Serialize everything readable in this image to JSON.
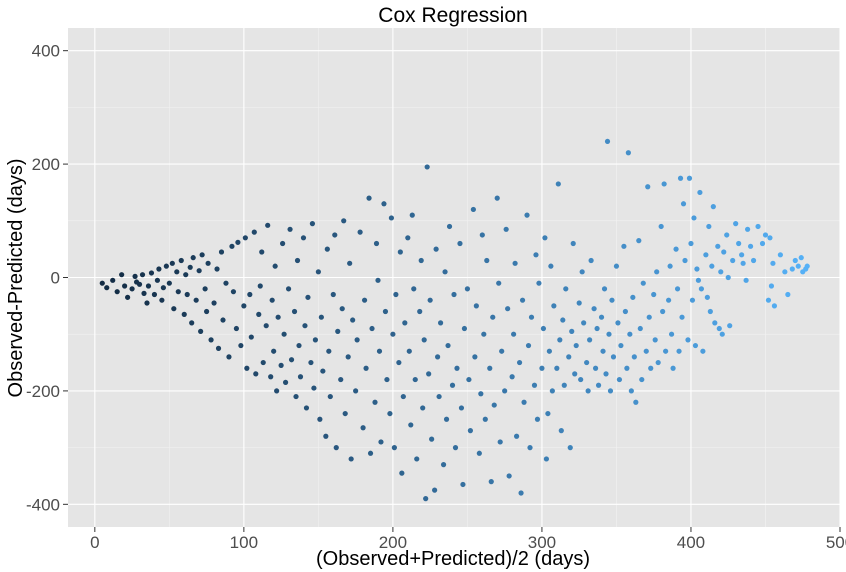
{
  "chart_data": {
    "type": "scatter",
    "title": "Cox Regression",
    "xlabel": "(Observed+Predicted)/2  (days)",
    "ylabel": "Observed-Predicted  (days)",
    "xlim": [
      -18,
      500
    ],
    "ylim": [
      -440,
      440
    ],
    "xticks": [
      0,
      100,
      200,
      300,
      400,
      500
    ],
    "xtick_labels": [
      "0",
      "100",
      "200",
      "300",
      "400",
      "500"
    ],
    "yticks": [
      -400,
      -200,
      0,
      200,
      400
    ],
    "ytick_labels": [
      "-400",
      "-200",
      "0",
      "200",
      "400"
    ],
    "grid": true,
    "panel_background": "#e5e5e5",
    "color_scale": {
      "low": "#132b43",
      "high": "#56b1f7",
      "mapped_to": "x"
    },
    "points": [
      [
        5,
        -10
      ],
      [
        8,
        -18
      ],
      [
        12,
        -5
      ],
      [
        15,
        -25
      ],
      [
        18,
        5
      ],
      [
        20,
        -15
      ],
      [
        22,
        -35
      ],
      [
        25,
        -20
      ],
      [
        27,
        2
      ],
      [
        28,
        -8
      ],
      [
        30,
        -12
      ],
      [
        32,
        5
      ],
      [
        33,
        -28
      ],
      [
        35,
        -45
      ],
      [
        36,
        -15
      ],
      [
        38,
        8
      ],
      [
        40,
        -30
      ],
      [
        42,
        -5
      ],
      [
        43,
        15
      ],
      [
        45,
        -40
      ],
      [
        46,
        -18
      ],
      [
        48,
        20
      ],
      [
        50,
        -10
      ],
      [
        52,
        25
      ],
      [
        53,
        -55
      ],
      [
        55,
        10
      ],
      [
        56,
        -25
      ],
      [
        58,
        30
      ],
      [
        60,
        -65
      ],
      [
        61,
        5
      ],
      [
        62,
        -30
      ],
      [
        64,
        18
      ],
      [
        65,
        -80
      ],
      [
        66,
        35
      ],
      [
        68,
        -40
      ],
      [
        70,
        12
      ],
      [
        71,
        -95
      ],
      [
        72,
        40
      ],
      [
        74,
        -20
      ],
      [
        75,
        -60
      ],
      [
        76,
        25
      ],
      [
        78,
        -110
      ],
      [
        80,
        -45
      ],
      [
        82,
        15
      ],
      [
        83,
        -125
      ],
      [
        85,
        45
      ],
      [
        86,
        -75
      ],
      [
        88,
        -10
      ],
      [
        90,
        -140
      ],
      [
        92,
        55
      ],
      [
        93,
        -25
      ],
      [
        95,
        -90
      ],
      [
        96,
        62
      ],
      [
        98,
        -120
      ],
      [
        100,
        -50
      ],
      [
        101,
        70
      ],
      [
        102,
        -160
      ],
      [
        104,
        -30
      ],
      [
        105,
        -105
      ],
      [
        107,
        80
      ],
      [
        108,
        -170
      ],
      [
        110,
        -65
      ],
      [
        111,
        -15
      ],
      [
        112,
        45
      ],
      [
        113,
        -150
      ],
      [
        115,
        -85
      ],
      [
        116,
        92
      ],
      [
        118,
        -175
      ],
      [
        119,
        -40
      ],
      [
        120,
        -130
      ],
      [
        121,
        20
      ],
      [
        122,
        -200
      ],
      [
        123,
        -70
      ],
      [
        125,
        -155
      ],
      [
        126,
        60
      ],
      [
        127,
        -100
      ],
      [
        128,
        -185
      ],
      [
        130,
        -20
      ],
      [
        131,
        85
      ],
      [
        132,
        -145
      ],
      [
        134,
        -60
      ],
      [
        135,
        -210
      ],
      [
        136,
        30
      ],
      [
        137,
        -120
      ],
      [
        138,
        -175
      ],
      [
        140,
        70
      ],
      [
        141,
        -85
      ],
      [
        142,
        -230
      ],
      [
        143,
        -35
      ],
      [
        145,
        -150
      ],
      [
        146,
        95
      ],
      [
        147,
        -195
      ],
      [
        148,
        -110
      ],
      [
        150,
        10
      ],
      [
        151,
        -250
      ],
      [
        152,
        -70
      ],
      [
        153,
        -165
      ],
      [
        155,
        -280
      ],
      [
        156,
        50
      ],
      [
        157,
        -130
      ],
      [
        158,
        -210
      ],
      [
        160,
        -30
      ],
      [
        161,
        75
      ],
      [
        162,
        -300
      ],
      [
        163,
        -95
      ],
      [
        165,
        -180
      ],
      [
        166,
        -55
      ],
      [
        167,
        100
      ],
      [
        168,
        -240
      ],
      [
        170,
        -140
      ],
      [
        171,
        25
      ],
      [
        172,
        -320
      ],
      [
        173,
        -75
      ],
      [
        175,
        -200
      ],
      [
        176,
        -110
      ],
      [
        178,
        80
      ],
      [
        180,
        -265
      ],
      [
        181,
        -40
      ],
      [
        182,
        -160
      ],
      [
        184,
        140
      ],
      [
        185,
        -310
      ],
      [
        186,
        -90
      ],
      [
        188,
        -220
      ],
      [
        189,
        60
      ],
      [
        190,
        -5
      ],
      [
        191,
        -130
      ],
      [
        192,
        -290
      ],
      [
        194,
        130
      ],
      [
        195,
        -60
      ],
      [
        196,
        -180
      ],
      [
        198,
        -240
      ],
      [
        199,
        105
      ],
      [
        200,
        -100
      ],
      [
        201,
        -300
      ],
      [
        202,
        -30
      ],
      [
        204,
        -150
      ],
      [
        205,
        45
      ],
      [
        206,
        -345
      ],
      [
        207,
        -210
      ],
      [
        208,
        -80
      ],
      [
        210,
        70
      ],
      [
        211,
        -130
      ],
      [
        212,
        -260
      ],
      [
        213,
        110
      ],
      [
        214,
        -20
      ],
      [
        215,
        -180
      ],
      [
        216,
        -320
      ],
      [
        218,
        -60
      ],
      [
        219,
        30
      ],
      [
        220,
        -230
      ],
      [
        221,
        -110
      ],
      [
        222,
        -390
      ],
      [
        223,
        195
      ],
      [
        224,
        -170
      ],
      [
        225,
        -40
      ],
      [
        226,
        -285
      ],
      [
        228,
        -375
      ],
      [
        229,
        50
      ],
      [
        230,
        -140
      ],
      [
        231,
        -210
      ],
      [
        232,
        -80
      ],
      [
        234,
        -330
      ],
      [
        235,
        10
      ],
      [
        236,
        -250
      ],
      [
        237,
        -120
      ],
      [
        238,
        90
      ],
      [
        240,
        -190
      ],
      [
        241,
        -30
      ],
      [
        242,
        -300
      ],
      [
        243,
        -160
      ],
      [
        245,
        60
      ],
      [
        246,
        -230
      ],
      [
        247,
        -365
      ],
      [
        248,
        -90
      ],
      [
        250,
        -20
      ],
      [
        251,
        -180
      ],
      [
        252,
        -270
      ],
      [
        254,
        120
      ],
      [
        255,
        -140
      ],
      [
        256,
        -50
      ],
      [
        258,
        -310
      ],
      [
        259,
        -205
      ],
      [
        260,
        75
      ],
      [
        261,
        -100
      ],
      [
        262,
        -250
      ],
      [
        263,
        30
      ],
      [
        265,
        -160
      ],
      [
        266,
        -360
      ],
      [
        267,
        -70
      ],
      [
        268,
        -225
      ],
      [
        270,
        140
      ],
      [
        271,
        -10
      ],
      [
        272,
        -290
      ],
      [
        273,
        -130
      ],
      [
        275,
        -200
      ],
      [
        276,
        85
      ],
      [
        277,
        -55
      ],
      [
        278,
        -350
      ],
      [
        280,
        -175
      ],
      [
        281,
        -100
      ],
      [
        282,
        25
      ],
      [
        283,
        -280
      ],
      [
        285,
        -150
      ],
      [
        286,
        -380
      ],
      [
        287,
        -40
      ],
      [
        288,
        -220
      ],
      [
        290,
        110
      ],
      [
        291,
        -120
      ],
      [
        292,
        -300
      ],
      [
        293,
        -70
      ],
      [
        295,
        -190
      ],
      [
        296,
        40
      ],
      [
        297,
        -250
      ],
      [
        298,
        -10
      ],
      [
        300,
        -160
      ],
      [
        301,
        -90
      ],
      [
        302,
        70
      ],
      [
        303,
        -320
      ],
      [
        304,
        -240
      ],
      [
        305,
        -130
      ],
      [
        306,
        20
      ],
      [
        307,
        -200
      ],
      [
        308,
        -50
      ],
      [
        310,
        -160
      ],
      [
        311,
        165
      ],
      [
        312,
        -110
      ],
      [
        313,
        -270
      ],
      [
        314,
        -75
      ],
      [
        315,
        -190
      ],
      [
        316,
        -20
      ],
      [
        318,
        -140
      ],
      [
        319,
        -300
      ],
      [
        320,
        -95
      ],
      [
        321,
        60
      ],
      [
        322,
        -170
      ],
      [
        323,
        -120
      ],
      [
        325,
        -45
      ],
      [
        326,
        -180
      ],
      [
        327,
        10
      ],
      [
        328,
        -80
      ],
      [
        330,
        -150
      ],
      [
        331,
        -200
      ],
      [
        332,
        -110
      ],
      [
        333,
        30
      ],
      [
        335,
        -55
      ],
      [
        336,
        -160
      ],
      [
        337,
        -90
      ],
      [
        338,
        -190
      ],
      [
        340,
        -70
      ],
      [
        341,
        -130
      ],
      [
        342,
        -20
      ],
      [
        343,
        -170
      ],
      [
        344,
        240
      ],
      [
        345,
        -100
      ],
      [
        346,
        -200
      ],
      [
        347,
        -40
      ],
      [
        348,
        -140
      ],
      [
        350,
        20
      ],
      [
        351,
        -80
      ],
      [
        352,
        -180
      ],
      [
        353,
        -120
      ],
      [
        355,
        55
      ],
      [
        356,
        -60
      ],
      [
        357,
        -160
      ],
      [
        358,
        220
      ],
      [
        359,
        -100
      ],
      [
        360,
        -200
      ],
      [
        361,
        -35
      ],
      [
        362,
        -140
      ],
      [
        363,
        -220
      ],
      [
        365,
        65
      ],
      [
        366,
        -90
      ],
      [
        367,
        -180
      ],
      [
        368,
        -10
      ],
      [
        370,
        -130
      ],
      [
        371,
        160
      ],
      [
        372,
        -70
      ],
      [
        373,
        -160
      ],
      [
        375,
        -30
      ],
      [
        376,
        -110
      ],
      [
        377,
        10
      ],
      [
        378,
        -150
      ],
      [
        380,
        90
      ],
      [
        381,
        -60
      ],
      [
        382,
        165
      ],
      [
        383,
        -130
      ],
      [
        385,
        -40
      ],
      [
        386,
        20
      ],
      [
        387,
        -100
      ],
      [
        388,
        -160
      ],
      [
        390,
        50
      ],
      [
        391,
        -20
      ],
      [
        392,
        -130
      ],
      [
        393,
        175
      ],
      [
        394,
        -70
      ],
      [
        395,
        130
      ],
      [
        396,
        30
      ],
      [
        398,
        -110
      ],
      [
        399,
        175
      ],
      [
        400,
        60
      ],
      [
        401,
        -40
      ],
      [
        402,
        105
      ],
      [
        403,
        -120
      ],
      [
        404,
        15
      ],
      [
        405,
        -5
      ],
      [
        406,
        150
      ],
      [
        407,
        -20
      ],
      [
        408,
        -130
      ],
      [
        410,
        40
      ],
      [
        411,
        -35
      ],
      [
        412,
        90
      ],
      [
        413,
        -60
      ],
      [
        414,
        20
      ],
      [
        415,
        125
      ],
      [
        416,
        -80
      ],
      [
        418,
        55
      ],
      [
        419,
        -90
      ],
      [
        420,
        10
      ],
      [
        421,
        -100
      ],
      [
        422,
        45
      ],
      [
        424,
        75
      ],
      [
        425,
        0
      ],
      [
        426,
        -85
      ],
      [
        428,
        30
      ],
      [
        430,
        95
      ],
      [
        432,
        60
      ],
      [
        434,
        40
      ],
      [
        435,
        25
      ],
      [
        437,
        -5
      ],
      [
        438,
        85
      ],
      [
        440,
        55
      ],
      [
        442,
        30
      ],
      [
        445,
        90
      ],
      [
        448,
        60
      ],
      [
        450,
        75
      ],
      [
        452,
        -40
      ],
      [
        453,
        70
      ],
      [
        454,
        -15
      ],
      [
        455,
        25
      ],
      [
        456,
        -50
      ],
      [
        460,
        40
      ],
      [
        463,
        10
      ],
      [
        465,
        -30
      ],
      [
        468,
        15
      ],
      [
        470,
        30
      ],
      [
        472,
        20
      ],
      [
        474,
        35
      ],
      [
        475,
        10
      ],
      [
        477,
        15
      ],
      [
        478,
        20
      ]
    ]
  }
}
